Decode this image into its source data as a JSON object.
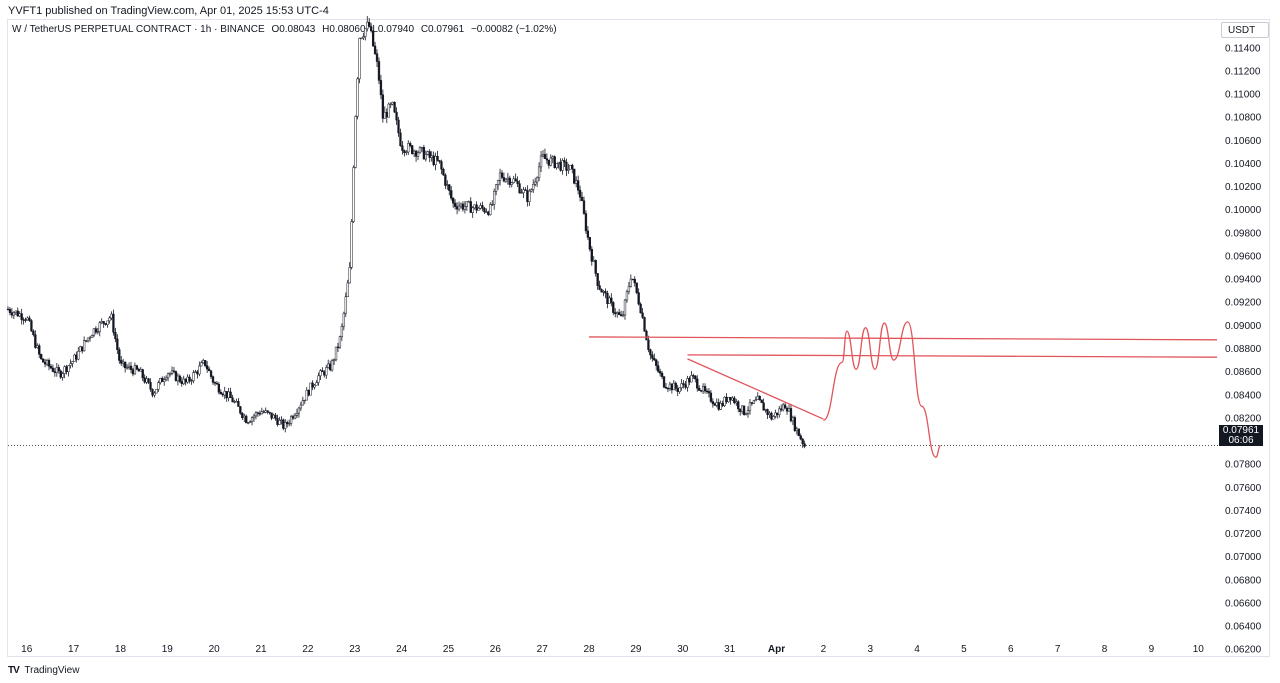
{
  "header": {
    "published_text": "YVFT1 published on TradingView.com, Apr 01, 2025 15:53 UTC-4"
  },
  "legend": {
    "symbol_line": "W / TetherUS PERPETUAL CONTRACT · 1h · BINANCE",
    "open": "O0.08043",
    "high": "H0.08060",
    "low": "L0.07940",
    "close": "C0.07961",
    "change": "−0.00082 (−1.02%)"
  },
  "axis": {
    "currency": "USDT"
  },
  "price_label": {
    "value": "0.07961",
    "countdown": "06:06"
  },
  "branding": {
    "logo_mark": "TV",
    "name": "TradingView"
  },
  "colors": {
    "candle": "#131722",
    "drawing": "#e0565b",
    "grid": "#e0e3eb",
    "axis_text": "#131722"
  },
  "chart_data": {
    "type": "candlestick",
    "timeframe": "1h",
    "y_axis_ticks": [
      "0.11400",
      "0.11200",
      "0.11000",
      "0.10800",
      "0.10600",
      "0.10400",
      "0.10200",
      "0.10000",
      "0.09800",
      "0.09600",
      "0.09400",
      "0.09200",
      "0.09000",
      "0.08800",
      "0.08600",
      "0.08400",
      "0.08200",
      "0.08000",
      "0.07800",
      "0.07600",
      "0.07400",
      "0.07200",
      "0.07000",
      "0.06800",
      "0.06600",
      "0.06400",
      "0.06200"
    ],
    "y_range": [
      0.0615,
      0.1164
    ],
    "x_axis_ticks": [
      "16",
      "17",
      "18",
      "19",
      "20",
      "21",
      "22",
      "23",
      "24",
      "25",
      "26",
      "27",
      "28",
      "29",
      "30",
      "31",
      "Apr",
      "2",
      "3",
      "4",
      "5",
      "6",
      "7",
      "8",
      "9",
      "10"
    ],
    "x_range_days": [
      15.6,
      41.4
    ],
    "price_path": [
      {
        "t": 15.6,
        "p": 0.0914
      },
      {
        "t": 16.0,
        "p": 0.0907
      },
      {
        "t": 16.3,
        "p": 0.087
      },
      {
        "t": 16.7,
        "p": 0.0858
      },
      {
        "t": 17.0,
        "p": 0.087
      },
      {
        "t": 17.4,
        "p": 0.0895
      },
      {
        "t": 17.8,
        "p": 0.0908
      },
      {
        "t": 18.0,
        "p": 0.0865
      },
      {
        "t": 18.4,
        "p": 0.086
      },
      {
        "t": 18.7,
        "p": 0.0842
      },
      {
        "t": 19.0,
        "p": 0.086
      },
      {
        "t": 19.4,
        "p": 0.085
      },
      {
        "t": 19.8,
        "p": 0.0868
      },
      {
        "t": 20.0,
        "p": 0.085
      },
      {
        "t": 20.4,
        "p": 0.0835
      },
      {
        "t": 20.7,
        "p": 0.0818
      },
      {
        "t": 21.0,
        "p": 0.0826
      },
      {
        "t": 21.3,
        "p": 0.082
      },
      {
        "t": 21.5,
        "p": 0.0812
      },
      {
        "t": 21.8,
        "p": 0.083
      },
      {
        "t": 22.2,
        "p": 0.0855
      },
      {
        "t": 22.5,
        "p": 0.0865
      },
      {
        "t": 22.7,
        "p": 0.089
      },
      {
        "t": 22.9,
        "p": 0.095
      },
      {
        "t": 23.0,
        "p": 0.107
      },
      {
        "t": 23.1,
        "p": 0.115
      },
      {
        "t": 23.3,
        "p": 0.116
      },
      {
        "t": 23.5,
        "p": 0.112
      },
      {
        "t": 23.6,
        "p": 0.108
      },
      {
        "t": 23.8,
        "p": 0.109
      },
      {
        "t": 24.0,
        "p": 0.1055
      },
      {
        "t": 24.4,
        "p": 0.105
      },
      {
        "t": 24.8,
        "p": 0.104
      },
      {
        "t": 25.1,
        "p": 0.1005
      },
      {
        "t": 25.5,
        "p": 0.1002
      },
      {
        "t": 25.9,
        "p": 0.1
      },
      {
        "t": 26.1,
        "p": 0.103
      },
      {
        "t": 26.4,
        "p": 0.1025
      },
      {
        "t": 26.7,
        "p": 0.101
      },
      {
        "t": 27.0,
        "p": 0.1045
      },
      {
        "t": 27.3,
        "p": 0.104
      },
      {
        "t": 27.6,
        "p": 0.1035
      },
      {
        "t": 27.8,
        "p": 0.1015
      },
      {
        "t": 28.0,
        "p": 0.097
      },
      {
        "t": 28.2,
        "p": 0.0935
      },
      {
        "t": 28.5,
        "p": 0.0915
      },
      {
        "t": 28.7,
        "p": 0.0905
      },
      {
        "t": 28.9,
        "p": 0.0945
      },
      {
        "t": 29.1,
        "p": 0.0915
      },
      {
        "t": 29.3,
        "p": 0.0875
      },
      {
        "t": 29.6,
        "p": 0.085
      },
      {
        "t": 29.9,
        "p": 0.0845
      },
      {
        "t": 30.2,
        "p": 0.0855
      },
      {
        "t": 30.5,
        "p": 0.084
      },
      {
        "t": 30.8,
        "p": 0.083
      },
      {
        "t": 31.0,
        "p": 0.084
      },
      {
        "t": 31.3,
        "p": 0.0825
      },
      {
        "t": 31.6,
        "p": 0.0835
      },
      {
        "t": 31.9,
        "p": 0.082
      },
      {
        "t": 32.2,
        "p": 0.0832
      },
      {
        "t": 32.4,
        "p": 0.0812
      },
      {
        "t": 32.6,
        "p": 0.0796
      }
    ],
    "last_price": 0.07961,
    "last_price_line": "dotted",
    "drawings": [
      {
        "kind": "horizontal-line",
        "from_t": 28.0,
        "to_t": 41.4,
        "p_start": 0.089,
        "p_end": 0.08875
      },
      {
        "kind": "horizontal-line",
        "from_t": 30.1,
        "to_t": 41.4,
        "p_start": 0.08745,
        "p_end": 0.08725
      },
      {
        "kind": "trendline",
        "from": {
          "t": 30.1,
          "p": 0.0871
        },
        "to": {
          "t": 33.0,
          "p": 0.0819
        }
      },
      {
        "kind": "projection-path",
        "points": [
          {
            "t": 33.0,
            "p": 0.0818
          },
          {
            "t": 33.4,
            "p": 0.0868
          },
          {
            "t": 33.5,
            "p": 0.0895
          },
          {
            "t": 33.7,
            "p": 0.0862
          },
          {
            "t": 33.9,
            "p": 0.0898
          },
          {
            "t": 34.1,
            "p": 0.0862
          },
          {
            "t": 34.3,
            "p": 0.0902
          },
          {
            "t": 34.5,
            "p": 0.087
          },
          {
            "t": 34.8,
            "p": 0.0903
          },
          {
            "t": 35.1,
            "p": 0.083
          },
          {
            "t": 35.4,
            "p": 0.0786
          },
          {
            "t": 35.5,
            "p": 0.0796
          }
        ]
      }
    ]
  }
}
